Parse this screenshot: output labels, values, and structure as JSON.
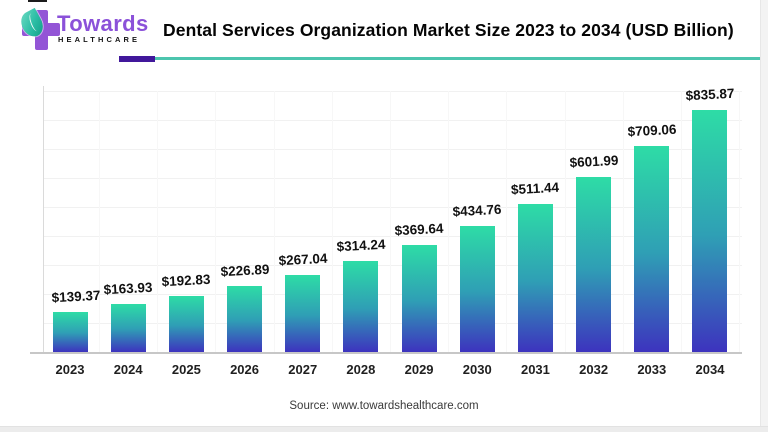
{
  "logo": {
    "brand": "Towards",
    "sub": "HEALTHCARE",
    "brand_color": "#8b51d9",
    "cross_color": "#9355d6",
    "leaf_color": "#2bbda4"
  },
  "header": {
    "title": "Dental Services Organization Market Size 2023 to 2034 (USD Billion)",
    "underline_purple": "#41189b",
    "underline_teal": "#4cc5ae"
  },
  "chart_data": {
    "type": "bar",
    "title": "Dental Services Organization Market Size 2023 to 2034 (USD Billion)",
    "categories": [
      "2023",
      "2024",
      "2025",
      "2026",
      "2027",
      "2028",
      "2029",
      "2030",
      "2031",
      "2032",
      "2033",
      "2034"
    ],
    "values": [
      139.37,
      163.93,
      192.83,
      226.89,
      267.04,
      314.24,
      369.64,
      434.76,
      511.44,
      601.99,
      709.06,
      835.87
    ],
    "value_label_prefix": "$",
    "xlabel": "",
    "ylabel": "",
    "ylim": [
      0,
      900
    ],
    "grid_step": 100,
    "grid": "horizontal light gray, faint vertical category separators",
    "legend": "none",
    "bar_gradient_top": "#2edca6",
    "bar_gradient_bottom": "#3d33be"
  },
  "source": {
    "label": "Source: www.towardshealthcare.com"
  }
}
